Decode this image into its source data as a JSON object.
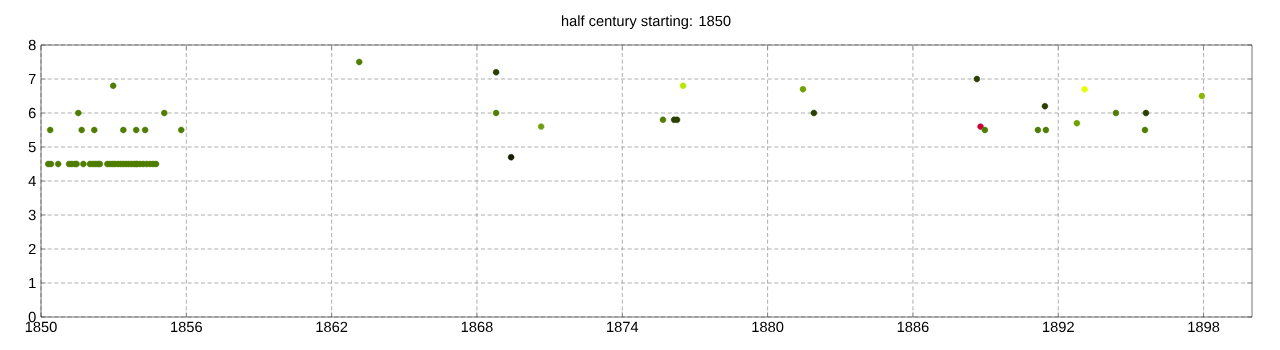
{
  "chart_data": {
    "type": "scatter",
    "title": "half century starting: 1850",
    "x": [
      1850.3,
      1850.41,
      1850.71,
      1851.16,
      1851.27,
      1851.4,
      1851.47,
      1851.75,
      1852.02,
      1852.13,
      1852.24,
      1852.35,
      1852.43,
      1852.74,
      1852.85,
      1852.96,
      1853.06,
      1853.18,
      1853.29,
      1853.4,
      1853.51,
      1853.62,
      1853.73,
      1853.84,
      1853.92,
      1853.97,
      1854.09,
      1854.22,
      1854.36,
      1854.5,
      1854.63,
      1854.75,
      1850.38,
      1851.68,
      1852.2,
      1853.4,
      1853.93,
      1854.3,
      1855.79,
      1851.54,
      1855.09,
      1852.98,
      1863.14,
      1868.79,
      1868.79,
      1870.65,
      1869.41,
      1876.51,
      1875.68,
      1876.14,
      1876.26,
      1881.46,
      1881.91,
      1888.64,
      1888.79,
      1888.97,
      1891.16,
      1891.49,
      1891.45,
      1892.77,
      1893.09,
      1894.38,
      1895.62,
      1895.58,
      1897.93
    ],
    "values": [
      4.5,
      4.5,
      4.5,
      4.5,
      4.5,
      4.5,
      4.5,
      4.5,
      4.5,
      4.5,
      4.5,
      4.5,
      4.5,
      4.5,
      4.5,
      4.5,
      4.5,
      4.5,
      4.5,
      4.5,
      4.5,
      4.5,
      4.5,
      4.5,
      4.5,
      4.5,
      4.5,
      4.5,
      4.5,
      4.5,
      4.5,
      4.5,
      5.5,
      5.5,
      5.5,
      5.5,
      5.5,
      5.5,
      5.5,
      6,
      6,
      6.8,
      7.5,
      7.2,
      6,
      5.6,
      4.7,
      6.8,
      5.8,
      5.8,
      5.8,
      6.7,
      6,
      7,
      5.6,
      5.5,
      5.5,
      5.5,
      6.2,
      5.7,
      6.7,
      6,
      6,
      5.5,
      6.5
    ],
    "colors": [
      "#4e7d00",
      "#4e7d00",
      "#4e7d00",
      "#4e7d00",
      "#4e7d00",
      "#4e7d00",
      "#4e7d00",
      "#4e7d00",
      "#4e7d00",
      "#4e7d00",
      "#4e7d00",
      "#4e7d00",
      "#4e7d00",
      "#4e7d00",
      "#4e7d00",
      "#4e7d00",
      "#4e7d00",
      "#4e7d00",
      "#4e7d00",
      "#4e7d00",
      "#4e7d00",
      "#4e7d00",
      "#4e7d00",
      "#4e7d00",
      "#4e7d00",
      "#4e7d00",
      "#4e7d00",
      "#4e7d00",
      "#4e7d00",
      "#4e7d00",
      "#4e7d00",
      "#4e7d00",
      "#4e7d00",
      "#4e7d00",
      "#4e7d00",
      "#4e7d00",
      "#4e7d00",
      "#4e7d00",
      "#4e7d00",
      "#4e7d00",
      "#4e7d00",
      "#4e7d00",
      "#4e7d00",
      "#2a3f00",
      "#4e7d00",
      "#6e9e10",
      "#141f00",
      "#b8e600",
      "#4e7d00",
      "#2a3f00",
      "#2a3f00",
      "#6ea000",
      "#2a3f00",
      "#2a3f00",
      "#cc0033",
      "#4e7d00",
      "#4e7d00",
      "#4e7d00",
      "#2a3f00",
      "#6ea000",
      "#e6ff00",
      "#4e7d00",
      "#2a3f00",
      "#4e7d00",
      "#8ab800"
    ],
    "xlim": [
      1850,
      1900
    ],
    "xticks": [
      1850,
      1856,
      1862,
      1868,
      1874,
      1880,
      1886,
      1892,
      1898
    ],
    "ylim": [
      0,
      8
    ],
    "yticks": [
      0,
      1,
      2,
      3,
      4,
      5,
      6,
      7,
      8
    ],
    "grid": true
  }
}
